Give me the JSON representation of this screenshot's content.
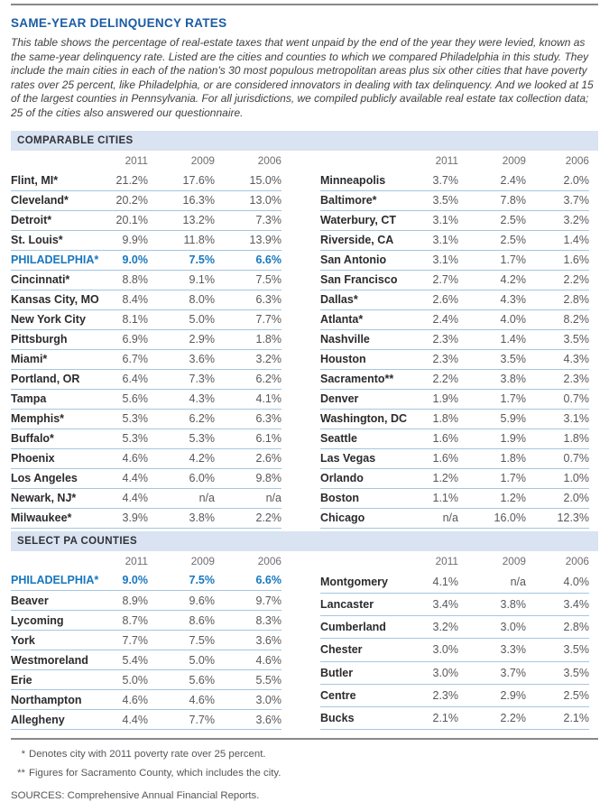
{
  "page": {
    "title": "SAME-YEAR DELINQUENCY RATES",
    "intro": "This table shows the percentage of real-estate taxes that went unpaid by the end of the year they were levied, known as the same-year delinquency rate. Listed are the cities and counties to which we compared Philadelphia in this study. They include the main cities in each of the nation's 30 most populous metropolitan areas plus six other cities that have poverty rates over 25 percent, like Philadelphia, or are considered innovators in dealing with tax delinquency. And we looked at 15 of the largest counties in Pennsylvania. For all jurisdictions, we compiled publicly available real estate tax collection data; 25 of the cities also answered our questionnaire."
  },
  "colors": {
    "title_blue": "#1a5ca5",
    "philadelphia_blue": "#1777be",
    "band_background": "#d9e3f1",
    "row_rule_blue": "#a5c6e2",
    "page_rule_gray": "#87898c"
  },
  "sections": [
    {
      "label": "COMPARABLE CITIES",
      "col_headers": [
        "2011",
        "2009",
        "2006"
      ],
      "left_rows": [
        {
          "name": "Flint, MI*",
          "values": [
            "21.2%",
            "17.6%",
            "15.0%"
          ],
          "highlight": false
        },
        {
          "name": "Cleveland*",
          "values": [
            "20.2%",
            "16.3%",
            "13.0%"
          ],
          "highlight": false
        },
        {
          "name": "Detroit*",
          "values": [
            "20.1%",
            "13.2%",
            "7.3%"
          ],
          "highlight": false
        },
        {
          "name": "St. Louis*",
          "values": [
            "9.9%",
            "11.8%",
            "13.9%"
          ],
          "highlight": false
        },
        {
          "name": "PHILADELPHIA*",
          "values": [
            "9.0%",
            "7.5%",
            "6.6%"
          ],
          "highlight": true
        },
        {
          "name": "Cincinnati*",
          "values": [
            "8.8%",
            "9.1%",
            "7.5%"
          ],
          "highlight": false
        },
        {
          "name": "Kansas City, MO",
          "values": [
            "8.4%",
            "8.0%",
            "6.3%"
          ],
          "highlight": false
        },
        {
          "name": "New York City",
          "values": [
            "8.1%",
            "5.0%",
            "7.7%"
          ],
          "highlight": false
        },
        {
          "name": "Pittsburgh",
          "values": [
            "6.9%",
            "2.9%",
            "1.8%"
          ],
          "highlight": false
        },
        {
          "name": "Miami*",
          "values": [
            "6.7%",
            "3.6%",
            "3.2%"
          ],
          "highlight": false
        },
        {
          "name": "Portland, OR",
          "values": [
            "6.4%",
            "7.3%",
            "6.2%"
          ],
          "highlight": false
        },
        {
          "name": "Tampa",
          "values": [
            "5.6%",
            "4.3%",
            "4.1%"
          ],
          "highlight": false
        },
        {
          "name": "Memphis*",
          "values": [
            "5.3%",
            "6.2%",
            "6.3%"
          ],
          "highlight": false
        },
        {
          "name": "Buffalo*",
          "values": [
            "5.3%",
            "5.3%",
            "6.1%"
          ],
          "highlight": false
        },
        {
          "name": "Phoenix",
          "values": [
            "4.6%",
            "4.2%",
            "2.6%"
          ],
          "highlight": false
        },
        {
          "name": "Los Angeles",
          "values": [
            "4.4%",
            "6.0%",
            "9.8%"
          ],
          "highlight": false
        },
        {
          "name": "Newark, NJ*",
          "values": [
            "4.4%",
            "n/a",
            "n/a"
          ],
          "highlight": false
        },
        {
          "name": "Milwaukee*",
          "values": [
            "3.9%",
            "3.8%",
            "2.2%"
          ],
          "highlight": false
        }
      ],
      "right_rows": [
        {
          "name": "Minneapolis",
          "values": [
            "3.7%",
            "2.4%",
            "2.0%"
          ],
          "highlight": false
        },
        {
          "name": "Baltimore*",
          "values": [
            "3.5%",
            "7.8%",
            "3.7%"
          ],
          "highlight": false
        },
        {
          "name": "Waterbury, CT",
          "values": [
            "3.1%",
            "2.5%",
            "3.2%"
          ],
          "highlight": false
        },
        {
          "name": "Riverside, CA",
          "values": [
            "3.1%",
            "2.5%",
            "1.4%"
          ],
          "highlight": false
        },
        {
          "name": "San Antonio",
          "values": [
            "3.1%",
            "1.7%",
            "1.6%"
          ],
          "highlight": false
        },
        {
          "name": "San Francisco",
          "values": [
            "2.7%",
            "4.2%",
            "2.2%"
          ],
          "highlight": false
        },
        {
          "name": "Dallas*",
          "values": [
            "2.6%",
            "4.3%",
            "2.8%"
          ],
          "highlight": false
        },
        {
          "name": "Atlanta*",
          "values": [
            "2.4%",
            "4.0%",
            "8.2%"
          ],
          "highlight": false
        },
        {
          "name": "Nashville",
          "values": [
            "2.3%",
            "1.4%",
            "3.5%"
          ],
          "highlight": false
        },
        {
          "name": "Houston",
          "values": [
            "2.3%",
            "3.5%",
            "4.3%"
          ],
          "highlight": false
        },
        {
          "name": "Sacramento**",
          "values": [
            "2.2%",
            "3.8%",
            "2.3%"
          ],
          "highlight": false
        },
        {
          "name": "Denver",
          "values": [
            "1.9%",
            "1.7%",
            "0.7%"
          ],
          "highlight": false
        },
        {
          "name": "Washington, DC",
          "values": [
            "1.8%",
            "5.9%",
            "3.1%"
          ],
          "highlight": false
        },
        {
          "name": "Seattle",
          "values": [
            "1.6%",
            "1.9%",
            "1.8%"
          ],
          "highlight": false
        },
        {
          "name": "Las Vegas",
          "values": [
            "1.6%",
            "1.8%",
            "0.7%"
          ],
          "highlight": false
        },
        {
          "name": "Orlando",
          "values": [
            "1.2%",
            "1.7%",
            "1.0%"
          ],
          "highlight": false
        },
        {
          "name": "Boston",
          "values": [
            "1.1%",
            "1.2%",
            "2.0%"
          ],
          "highlight": false
        },
        {
          "name": "Chicago",
          "values": [
            "n/a",
            "16.0%",
            "12.3%"
          ],
          "highlight": false
        }
      ]
    },
    {
      "label": "SELECT PA COUNTIES",
      "col_headers": [
        "2011",
        "2009",
        "2006"
      ],
      "left_rows": [
        {
          "name": "PHILADELPHIA*",
          "values": [
            "9.0%",
            "7.5%",
            "6.6%"
          ],
          "highlight": true
        },
        {
          "name": "Beaver",
          "values": [
            "8.9%",
            "9.6%",
            "9.7%"
          ],
          "highlight": false
        },
        {
          "name": "Lycoming",
          "values": [
            "8.7%",
            "8.6%",
            "8.3%"
          ],
          "highlight": false
        },
        {
          "name": "York",
          "values": [
            "7.7%",
            "7.5%",
            "3.6%"
          ],
          "highlight": false
        },
        {
          "name": "Westmoreland",
          "values": [
            "5.4%",
            "5.0%",
            "4.6%"
          ],
          "highlight": false
        },
        {
          "name": "Erie",
          "values": [
            "5.0%",
            "5.6%",
            "5.5%"
          ],
          "highlight": false
        },
        {
          "name": "Northampton",
          "values": [
            "4.6%",
            "4.6%",
            "3.0%"
          ],
          "highlight": false
        },
        {
          "name": "Allegheny",
          "values": [
            "4.4%",
            "7.7%",
            "3.6%"
          ],
          "highlight": false
        }
      ],
      "right_rows": [
        {
          "name": "Montgomery",
          "values": [
            "4.1%",
            "n/a",
            "4.0%"
          ],
          "highlight": false
        },
        {
          "name": "Lancaster",
          "values": [
            "3.4%",
            "3.8%",
            "3.4%"
          ],
          "highlight": false
        },
        {
          "name": "Cumberland",
          "values": [
            "3.2%",
            "3.0%",
            "2.8%"
          ],
          "highlight": false
        },
        {
          "name": "Chester",
          "values": [
            "3.0%",
            "3.3%",
            "3.5%"
          ],
          "highlight": false
        },
        {
          "name": "Butler",
          "values": [
            "3.0%",
            "3.7%",
            "3.5%"
          ],
          "highlight": false
        },
        {
          "name": "Centre",
          "values": [
            "2.3%",
            "2.9%",
            "2.5%"
          ],
          "highlight": false
        },
        {
          "name": "Bucks",
          "values": [
            "2.1%",
            "2.2%",
            "2.1%"
          ],
          "highlight": false
        }
      ]
    }
  ],
  "footnotes": [
    {
      "marker": "*",
      "text": "Denotes city with 2011 poverty rate over 25 percent."
    },
    {
      "marker": "**",
      "text": "Figures for Sacramento County, which includes the city."
    }
  ],
  "sources": "SOURCES: Comprehensive Annual Financial Reports."
}
